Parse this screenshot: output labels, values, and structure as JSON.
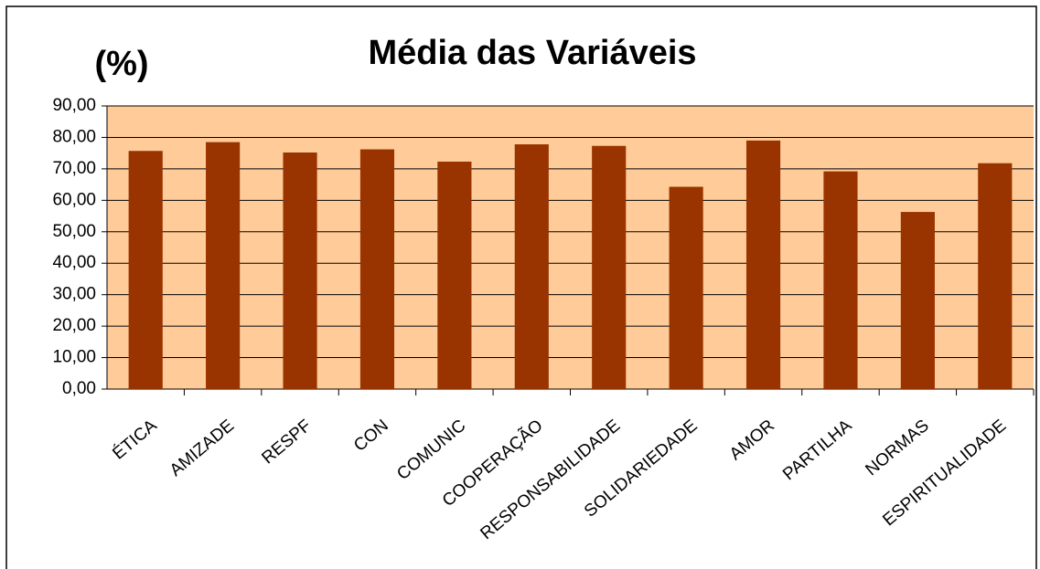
{
  "chart_data": {
    "type": "bar",
    "title": "Média das Variáveis",
    "y_label": "(%)",
    "categories": [
      "ÉTICA",
      "AMIZADE",
      "RESPF",
      "CON",
      "COMUNIC",
      "COOPERAÇÃO",
      "RESPONSABILIDADE",
      "SOLIDARIEDADE",
      "AMOR",
      "PARTILHA",
      "NORMAS",
      "ESPIRITUALIDADE"
    ],
    "values": [
      75.7,
      78.5,
      75.2,
      76.2,
      72.3,
      77.8,
      77.3,
      64.3,
      79.0,
      69.2,
      56.3,
      71.8
    ],
    "color": "#993300",
    "background": "#FFCC99",
    "ylim": [
      0,
      90
    ],
    "yticks": [
      {
        "value": 0,
        "label": "0,00"
      },
      {
        "value": 10,
        "label": "10,00"
      },
      {
        "value": 20,
        "label": "20,00"
      },
      {
        "value": 30,
        "label": "30,00"
      },
      {
        "value": 40,
        "label": "40,00"
      },
      {
        "value": 50,
        "label": "50,00"
      },
      {
        "value": 60,
        "label": "60,00"
      },
      {
        "value": 70,
        "label": "70,00"
      },
      {
        "value": 80,
        "label": "80,00"
      },
      {
        "value": 90,
        "label": "90,00"
      }
    ],
    "grid": true
  }
}
